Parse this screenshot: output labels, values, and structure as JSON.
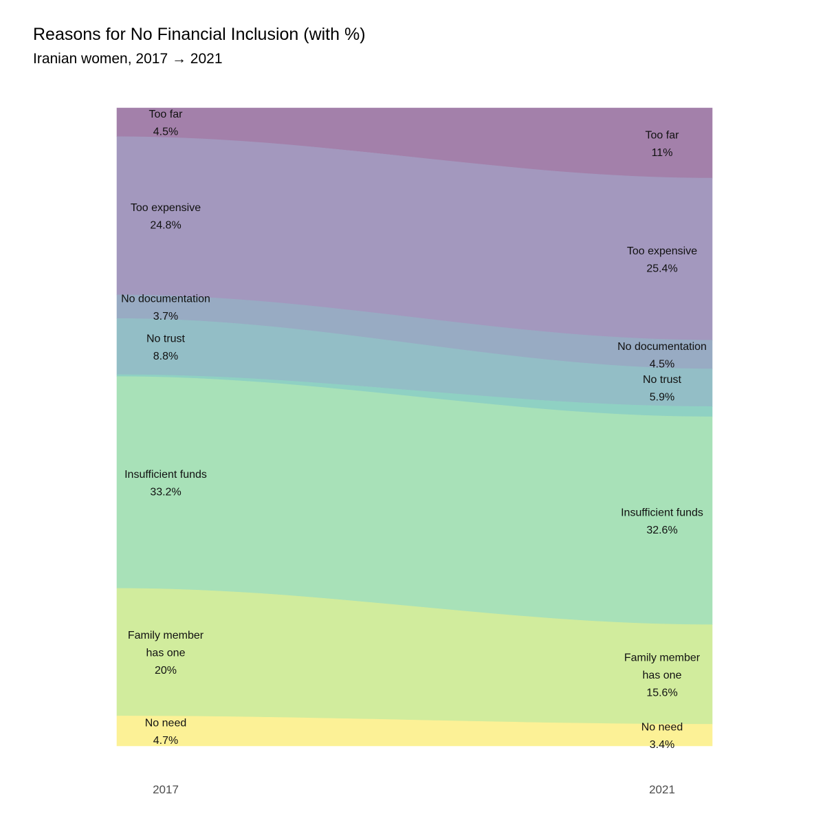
{
  "chart_data": {
    "type": "area",
    "chart_kind": "alluvial",
    "title": "Reasons for No Financial Inclusion (with %)",
    "subtitle": "Iranian women, 2017 → 2021",
    "xlabel": "",
    "ylabel": "",
    "categories": [
      "2017",
      "2021"
    ],
    "grid": false,
    "legend": "none",
    "series": [
      {
        "name": "Too far",
        "label_lines": [
          "Too far"
        ],
        "values": [
          4.5,
          11
        ],
        "value_labels": [
          "4.5%",
          "11%"
        ],
        "color": "#a380aa"
      },
      {
        "name": "Too expensive",
        "label_lines": [
          "Too expensive"
        ],
        "values": [
          24.8,
          25.4
        ],
        "value_labels": [
          "24.8%",
          "25.4%"
        ],
        "color": "#a398be"
      },
      {
        "name": "No documentation",
        "label_lines": [
          "No documentation"
        ],
        "values": [
          3.7,
          4.5
        ],
        "value_labels": [
          "3.7%",
          "4.5%"
        ],
        "color": "#98abc3"
      },
      {
        "name": "No trust",
        "label_lines": [
          "No trust"
        ],
        "values": [
          8.8,
          5.9
        ],
        "value_labels": [
          "8.8%",
          "5.9%"
        ],
        "color": "#93bec6"
      },
      {
        "name": "",
        "label_lines": [],
        "values": [
          0.3,
          1.6
        ],
        "value_labels": [
          "",
          ""
        ],
        "color": "#8fd1c3"
      },
      {
        "name": "Insufficient funds",
        "label_lines": [
          "Insufficient funds"
        ],
        "values": [
          33.2,
          32.6
        ],
        "value_labels": [
          "33.2%",
          "32.6%"
        ],
        "color": "#a8e1b8"
      },
      {
        "name": "Family member has one",
        "label_lines": [
          "Family member",
          "has one"
        ],
        "values": [
          20,
          15.6
        ],
        "value_labels": [
          "20%",
          "15.6%"
        ],
        "color": "#d1ec9d"
      },
      {
        "name": "No need",
        "label_lines": [
          "No need"
        ],
        "values": [
          4.7,
          3.4
        ],
        "value_labels": [
          "4.7%",
          "3.4%"
        ],
        "color": "#fcf196"
      }
    ]
  }
}
